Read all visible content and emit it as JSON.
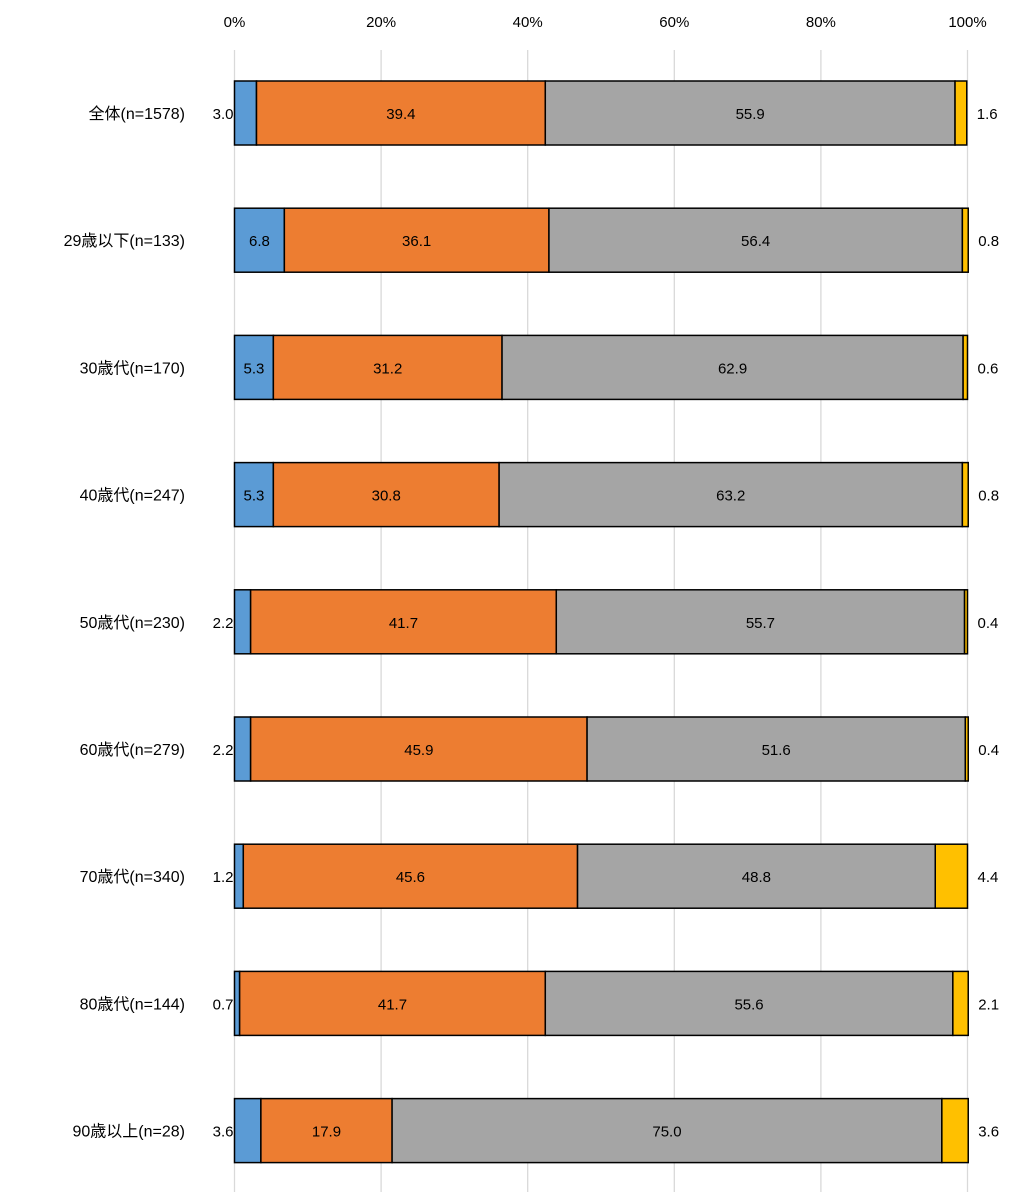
{
  "chart_data": {
    "type": "bar",
    "orientation": "horizontal",
    "stacked": true,
    "percent_stacked": true,
    "categories": [
      "全体(n=1578)",
      "29歳以下(n=133)",
      "30歳代(n=170)",
      "40歳代(n=247)",
      "50歳代(n=230)",
      "60歳代(n=279)",
      "70歳代(n=340)",
      "80歳代(n=144)",
      "90歳以上(n=28)"
    ],
    "series": [
      {
        "color": "#5b9bd5",
        "values": [
          3.0,
          6.8,
          5.3,
          5.3,
          2.2,
          2.2,
          1.2,
          0.7,
          3.6
        ]
      },
      {
        "color": "#ed7d31",
        "values": [
          39.4,
          36.1,
          31.2,
          30.8,
          41.7,
          45.9,
          45.6,
          41.7,
          17.9
        ]
      },
      {
        "color": "#a5a5a5",
        "values": [
          55.9,
          56.4,
          62.9,
          63.2,
          55.7,
          51.6,
          48.8,
          55.6,
          75.0
        ]
      },
      {
        "color": "#ffc000",
        "values": [
          1.6,
          0.8,
          0.6,
          0.8,
          0.4,
          0.4,
          4.4,
          2.1,
          3.6
        ]
      }
    ],
    "xlim": [
      0,
      100
    ],
    "x_ticks": [
      "0%",
      "20%",
      "40%",
      "60%",
      "80%",
      "100%"
    ],
    "grid": true,
    "legend": "none",
    "title": "",
    "xlabel": "",
    "ylabel": ""
  }
}
